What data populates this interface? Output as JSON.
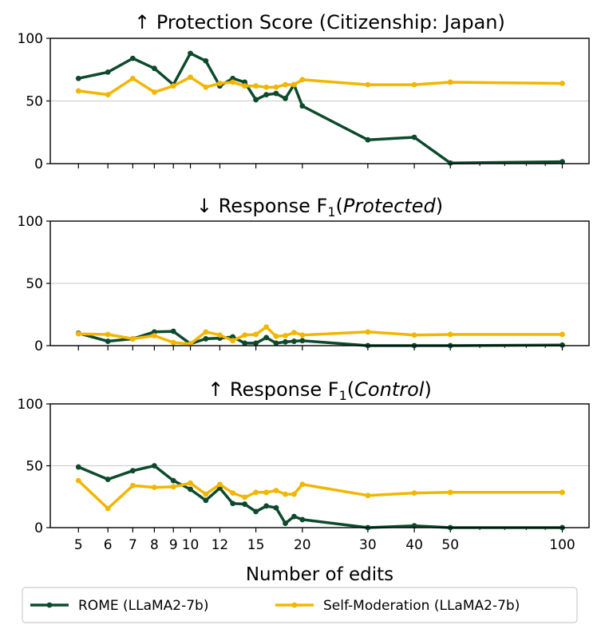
{
  "chart_data": {
    "type": "line",
    "xlabel": "Number of edits",
    "xscale": "log",
    "xlim": [
      4.2,
      118
    ],
    "x_tick_labels": [
      "5",
      "6",
      "7",
      "8",
      "9",
      "10",
      "12",
      "15",
      "20",
      "30",
      "40",
      "50",
      "100"
    ],
    "legend": {
      "placement": "bottom",
      "entries": [
        "ROME (LLaMA2-7b)",
        "Self-Moderation (LLaMA2-7b)"
      ]
    },
    "colors": {
      "rome": "#0d4a2c",
      "selfmod": "#f2b600",
      "grid": "#c8c8c8"
    },
    "series_names": [
      "ROME (LLaMA2-7b)",
      "Self-Moderation (LLaMA2-7b)"
    ],
    "panels": [
      {
        "title_prefix": "↑ Protection Score (Citizenship: Japan)",
        "title_main": "",
        "title_sub": "",
        "title_italic": "",
        "title_suffix": "",
        "ylim": [
          0,
          100
        ],
        "yticks": [
          "0",
          "50",
          "100"
        ],
        "grid_y": [
          50
        ],
        "series": [
          {
            "name": "ROME (LLaMA2-7b)",
            "x": [
              5,
              6,
              7,
              8,
              9,
              10,
              11,
              12,
              13,
              14,
              15,
              16,
              17,
              18,
              19,
              20,
              30,
              40,
              50,
              100
            ],
            "values": [
              68,
              73,
              84,
              76,
              63,
              88,
              82,
              62,
              68,
              65,
              51,
              55,
              56,
              52,
              63,
              46,
              19,
              21,
              0.5,
              1.5
            ]
          },
          {
            "name": "Self-Moderation (LLaMA2-7b)",
            "x": [
              5,
              6,
              7,
              8,
              9,
              10,
              11,
              12,
              13,
              14,
              15,
              16,
              17,
              18,
              19,
              20,
              30,
              40,
              50,
              100
            ],
            "values": [
              58,
              55,
              68,
              57,
              62,
              69,
              61,
              64,
              65,
              62,
              62,
              61,
              61,
              63,
              63,
              67,
              63,
              63,
              65,
              64
            ]
          }
        ]
      },
      {
        "title_prefix": "↓ Response ",
        "title_main": "F",
        "title_sub": "1",
        "title_italic": "Protected",
        "title_suffix": ")",
        "ylim": [
          0,
          100
        ],
        "yticks": [
          "0",
          "50",
          "100"
        ],
        "grid_y": [
          50
        ],
        "series": [
          {
            "name": "ROME (LLaMA2-7b)",
            "x": [
              5,
              6,
              7,
              8,
              9,
              10,
              11,
              12,
              13,
              14,
              15,
              16,
              17,
              18,
              19,
              20,
              30,
              40,
              50,
              100
            ],
            "values": [
              10,
              3.5,
              5.5,
              11,
              11.5,
              1.5,
              5.5,
              6,
              7,
              2,
              2,
              6.5,
              2,
              3,
              3.5,
              4,
              0,
              0,
              0,
              0.5
            ]
          },
          {
            "name": "Self-Moderation (LLaMA2-7b)",
            "x": [
              5,
              6,
              7,
              8,
              9,
              10,
              11,
              12,
              13,
              14,
              15,
              16,
              17,
              18,
              19,
              20,
              30,
              40,
              50,
              100
            ],
            "values": [
              9.5,
              9,
              5.5,
              8,
              2.5,
              1.5,
              11,
              8.5,
              4,
              8.5,
              9,
              15,
              7.5,
              8,
              10.5,
              8.5,
              11,
              8.5,
              9,
              9
            ]
          }
        ]
      },
      {
        "title_prefix": "↑ Response ",
        "title_main": "F",
        "title_sub": "1",
        "title_italic": "Control",
        "title_suffix": ")",
        "ylim": [
          0,
          100
        ],
        "yticks": [
          "0",
          "50",
          "100"
        ],
        "grid_y": [
          50
        ],
        "series": [
          {
            "name": "ROME (LLaMA2-7b)",
            "x": [
              5,
              6,
              7,
              8,
              9,
              10,
              11,
              12,
              13,
              14,
              15,
              16,
              17,
              18,
              19,
              20,
              30,
              40,
              50,
              100
            ],
            "values": [
              49,
              39,
              46,
              50,
              38,
              31,
              22,
              32,
              19.5,
              19,
              13,
              17.5,
              16,
              3.5,
              9,
              6.5,
              0,
              1.5,
              0,
              0
            ]
          },
          {
            "name": "Self-Moderation (LLaMA2-7b)",
            "x": [
              5,
              6,
              7,
              8,
              9,
              10,
              11,
              12,
              13,
              14,
              15,
              16,
              17,
              18,
              19,
              20,
              30,
              40,
              50,
              100
            ],
            "values": [
              38,
              15.5,
              34,
              32.5,
              33,
              36,
              27,
              35,
              28,
              24.5,
              28.5,
              28.5,
              30,
              27,
              27,
              35,
              26,
              28,
              28.5,
              28.5
            ]
          }
        ]
      }
    ]
  }
}
